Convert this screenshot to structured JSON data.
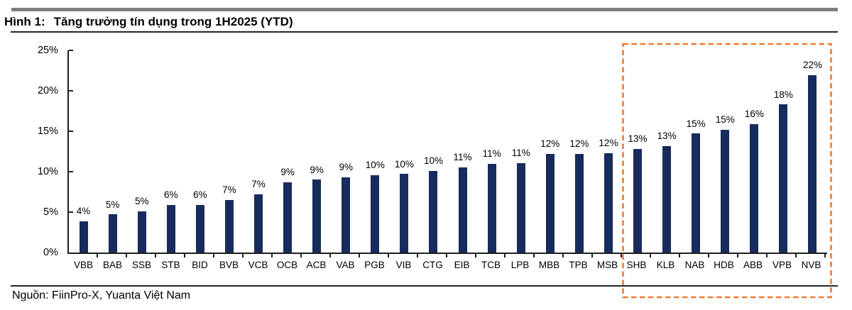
{
  "header": {
    "figure_label": "Hình 1:",
    "title": "Tăng trưởng tín dụng trong 1H2025 (YTD)"
  },
  "footer": {
    "source": "Nguồn: FiinPro-X, Yuanta Việt Nam"
  },
  "colors": {
    "bar": "#172b5c",
    "highlight_box": "#ED7D31",
    "axis": "#1f1f1f",
    "rule": "#262626",
    "top_bar": "#7f7f7f",
    "text": "#000000"
  },
  "chart_data": {
    "type": "bar",
    "title": "Tăng trưởng tín dụng trong 1H2025 (YTD)",
    "xlabel": "",
    "ylabel": "",
    "ylim": [
      0,
      25
    ],
    "grid": false,
    "legend": "none",
    "yticks": [
      "25%",
      "20%",
      "15%",
      "10%",
      "5%",
      "0%"
    ],
    "categories": [
      "VBB",
      "BAB",
      "SSB",
      "STB",
      "BID",
      "BVB",
      "VCB",
      "OCB",
      "ACB",
      "VAB",
      "PGB",
      "VIB",
      "CTG",
      "EIB",
      "TCB",
      "LPB",
      "MBB",
      "TPB",
      "MSB",
      "SHB",
      "KLB",
      "NAB",
      "HDB",
      "ABB",
      "VPB",
      "NVB"
    ],
    "values": [
      4,
      5,
      5,
      6,
      6,
      7,
      7,
      9,
      9,
      9,
      10,
      10,
      10,
      11,
      11,
      11,
      12,
      12,
      12,
      13,
      13,
      15,
      15,
      16,
      18,
      22
    ],
    "value_labels": [
      "4%",
      "5%",
      "5%",
      "6%",
      "6%",
      "7%",
      "7%",
      "9%",
      "9%",
      "9%",
      "10%",
      "10%",
      "10%",
      "11%",
      "11%",
      "11%",
      "12%",
      "12%",
      "12%",
      "13%",
      "13%",
      "15%",
      "15%",
      "16%",
      "18%",
      "22%"
    ],
    "values_precise": [
      3.9,
      4.7,
      5.1,
      5.9,
      5.9,
      6.5,
      7.2,
      8.7,
      9.0,
      9.3,
      9.6,
      9.7,
      10.1,
      10.5,
      11.0,
      11.1,
      12.2,
      12.2,
      12.3,
      12.8,
      13.2,
      14.7,
      15.2,
      15.9,
      18.3,
      21.9
    ],
    "highlight": {
      "style": "dashed-orange-box",
      "banks": [
        "SHB",
        "KLB",
        "NAB",
        "HDB",
        "ABB",
        "VPB",
        "NVB"
      ]
    }
  }
}
